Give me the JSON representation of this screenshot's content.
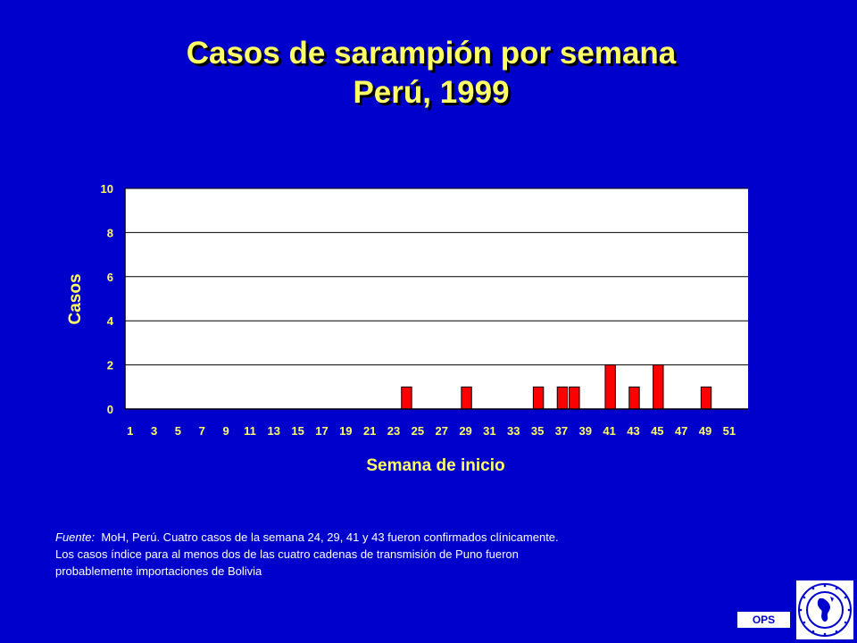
{
  "title": {
    "line1": "Casos de sarampión por semana",
    "line2": "Perú, 1999"
  },
  "colors": {
    "background": "#0000CC",
    "title": "#FFFF66",
    "axis_labels": "#FFFF66",
    "bars": "#FF0000",
    "plot_area": "#FFFFFF"
  },
  "chart_data": {
    "type": "bar",
    "xlabel": "Semana de inicio",
    "ylabel": "Casos",
    "ylim": [
      0,
      10
    ],
    "yticks": [
      0,
      2,
      4,
      6,
      8,
      10
    ],
    "xticks": [
      1,
      3,
      5,
      7,
      9,
      11,
      13,
      15,
      17,
      19,
      21,
      23,
      25,
      27,
      29,
      31,
      33,
      35,
      37,
      39,
      41,
      43,
      45,
      47,
      49,
      51
    ],
    "grid": "horizontal",
    "series": [
      {
        "weeks": [
          24,
          29,
          35,
          37,
          38,
          41,
          43,
          45,
          49
        ],
        "values": [
          1,
          1,
          1,
          1,
          1,
          2,
          1,
          2,
          1
        ]
      }
    ]
  },
  "source": {
    "label": "Fuente:",
    "line1": "MoH, Perú. Cuatro casos de la semana 24, 29, 41 y 43 fueron confirmados clínicamente.",
    "line2": "Los casos índice para al menos dos de las cuatro cadenas de transmisión de Puno fueron",
    "line3": "probablemente importaciones de Bolivia"
  },
  "badge": {
    "ops": "OPS"
  },
  "logo": {
    "icon": "paho-globe-emblem",
    "text": "OPS SALUD PARA TODOS"
  }
}
